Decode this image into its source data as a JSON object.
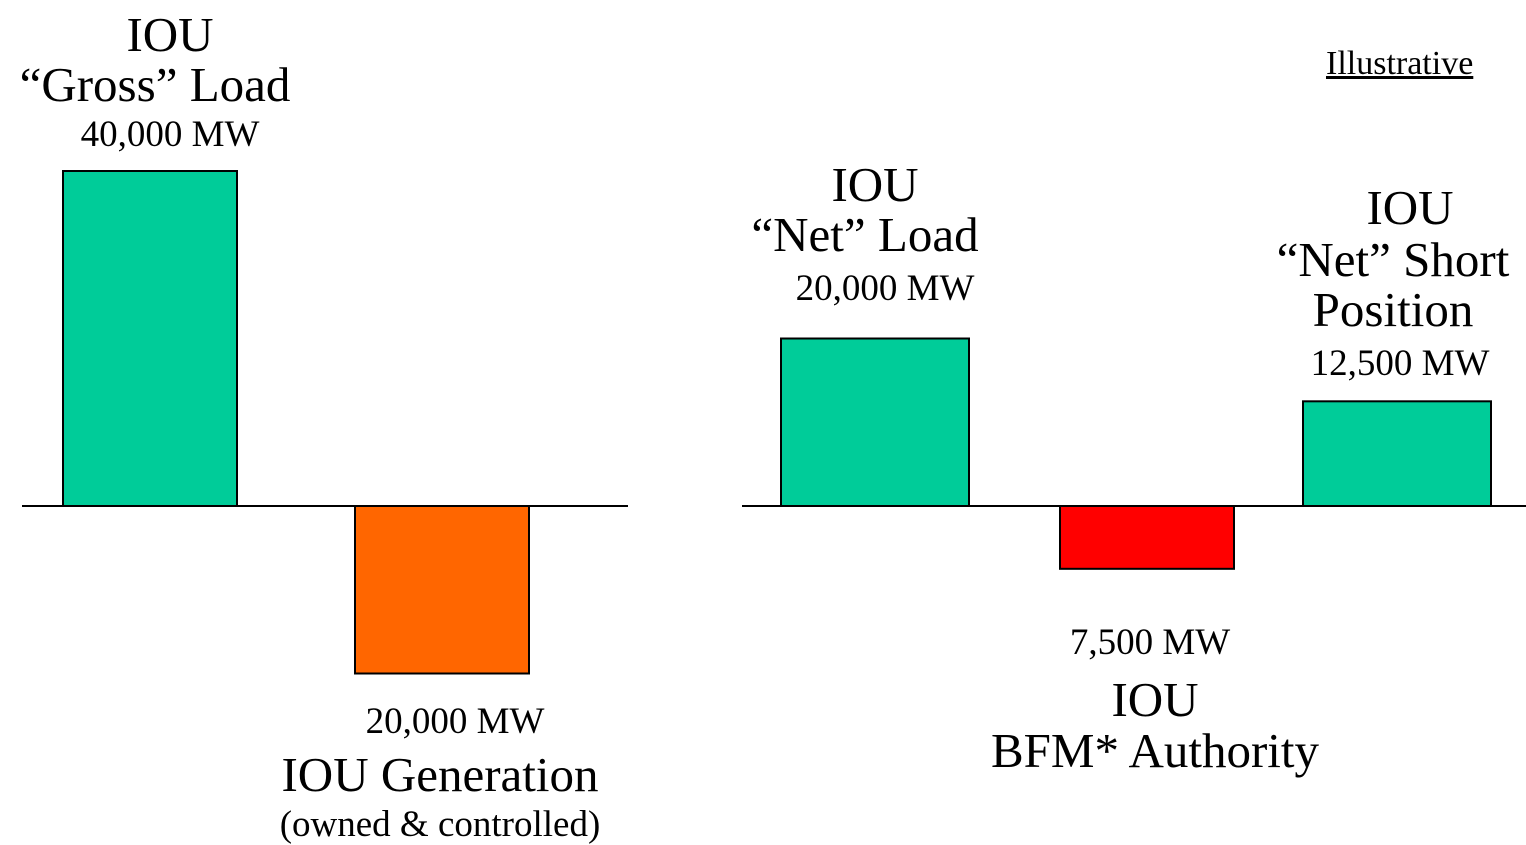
{
  "corner_label": "Illustrative",
  "chart_data": [
    {
      "type": "bar",
      "categories": [
        "IOU “Gross” Load",
        "IOU Generation"
      ],
      "values": [
        40000,
        -20000
      ],
      "unit": "MW",
      "colors": [
        "#00cc99",
        "#ff6600"
      ],
      "labels": [
        {
          "lines": [
            "IOU",
            "“Gross” Load"
          ],
          "value_text": "40,000 MW",
          "note": ""
        },
        {
          "lines": [
            "IOU Generation"
          ],
          "value_text": "20,000 MW",
          "note": "(owned & controlled)"
        }
      ]
    },
    {
      "type": "bar",
      "categories": [
        "IOU “Net” Load",
        "IOU BFM* Authority",
        "IOU “Net” Short Position"
      ],
      "values": [
        20000,
        -7500,
        12500
      ],
      "unit": "MW",
      "colors": [
        "#00cc99",
        "#ff0000",
        "#00cc99"
      ],
      "labels": [
        {
          "lines": [
            "IOU",
            "“Net” Load"
          ],
          "value_text": "20,000 MW"
        },
        {
          "lines": [
            "IOU",
            "BFM* Authority"
          ],
          "value_text": "7,500 MW"
        },
        {
          "lines": [
            "IOU",
            "“Net” Short",
            "Position"
          ],
          "value_text": "12,500 MW"
        }
      ]
    }
  ]
}
